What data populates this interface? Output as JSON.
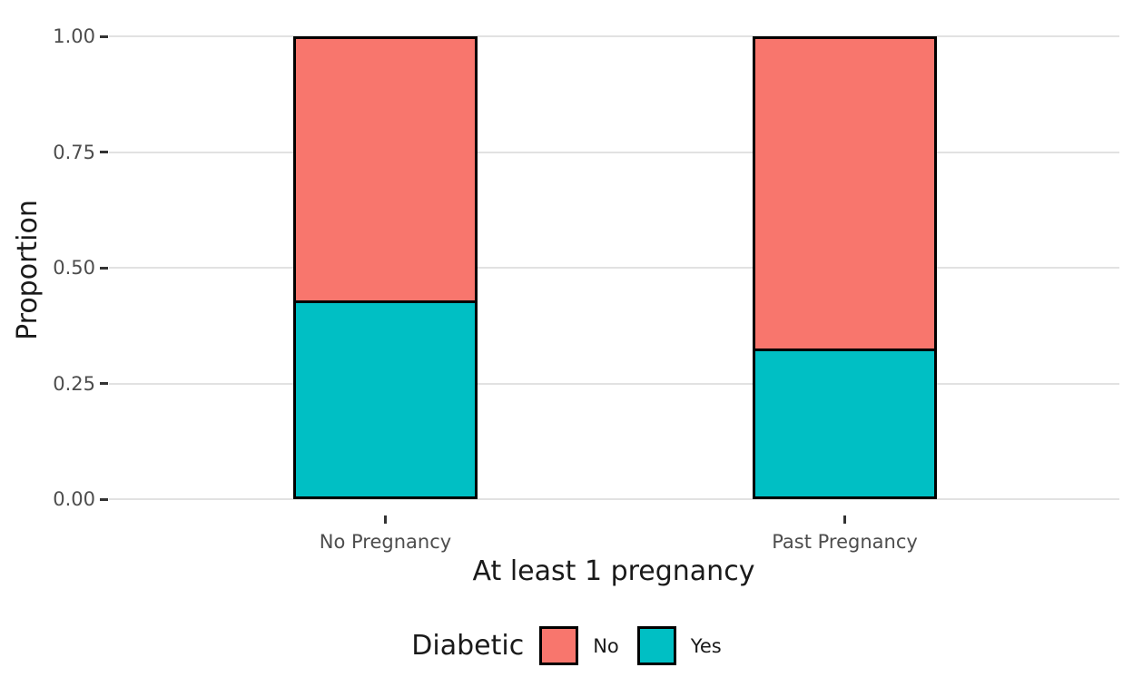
{
  "chart_data": {
    "type": "bar",
    "subtype": "stacked_proportion",
    "title": "",
    "xlabel": "At least 1 pregnancy",
    "ylabel": "Proportion",
    "categories": [
      "No Pregnancy",
      "Past Pregnancy"
    ],
    "series": [
      {
        "name": "No",
        "color": "#F8766D",
        "values": [
          0.57,
          0.675
        ]
      },
      {
        "name": "Yes",
        "color": "#00BFC4",
        "values": [
          0.43,
          0.325
        ]
      }
    ],
    "stack_order_bottom_to_top": [
      "Yes",
      "No"
    ],
    "ylim": [
      0,
      1
    ],
    "yticks": [
      0.0,
      0.25,
      0.5,
      0.75,
      1.0
    ],
    "ytick_labels": [
      "0.00",
      "0.25",
      "0.50",
      "0.75",
      "1.00"
    ],
    "grid": "horizontal-only",
    "legend": {
      "title": "Diabetic",
      "position": "bottom",
      "entries": [
        "No",
        "Yes"
      ]
    },
    "colors": {
      "background": "#FFFFFF",
      "gridline": "#E2E2E2",
      "bar_border": "#000000",
      "tick_label": "#4D4D4D",
      "axis_title": "#1A1A1A"
    }
  }
}
